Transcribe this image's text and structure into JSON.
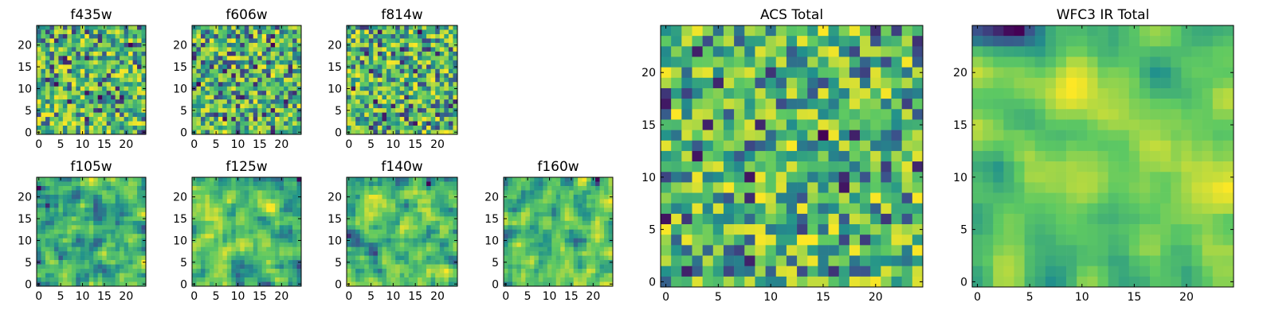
{
  "chart_data": [
    {
      "type": "heatmap",
      "title": "f435w",
      "grid_size": 25,
      "xticks": [
        "0",
        "5",
        "10",
        "15",
        "20"
      ],
      "yticks": [
        "0",
        "5",
        "10",
        "15",
        "20"
      ],
      "colormap": "viridis",
      "smooth": 0,
      "seed": 11
    },
    {
      "type": "heatmap",
      "title": "f606w",
      "grid_size": 25,
      "xticks": [
        "0",
        "5",
        "10",
        "15",
        "20"
      ],
      "yticks": [
        "0",
        "5",
        "10",
        "15",
        "20"
      ],
      "colormap": "viridis",
      "smooth": 0,
      "seed": 23
    },
    {
      "type": "heatmap",
      "title": "f814w",
      "grid_size": 25,
      "xticks": [
        "0",
        "5",
        "10",
        "15",
        "20"
      ],
      "yticks": [
        "0",
        "5",
        "10",
        "15",
        "20"
      ],
      "colormap": "viridis",
      "smooth": 0,
      "seed": 37
    },
    {
      "type": "heatmap",
      "title": "f105w",
      "grid_size": 25,
      "xticks": [
        "0",
        "5",
        "10",
        "15",
        "20"
      ],
      "yticks": [
        "0",
        "5",
        "10",
        "15",
        "20"
      ],
      "colormap": "viridis",
      "smooth": 1,
      "seed": 41
    },
    {
      "type": "heatmap",
      "title": "f125w",
      "grid_size": 25,
      "xticks": [
        "0",
        "5",
        "10",
        "15",
        "20"
      ],
      "yticks": [
        "0",
        "5",
        "10",
        "15",
        "20"
      ],
      "colormap": "viridis",
      "smooth": 1,
      "seed": 53
    },
    {
      "type": "heatmap",
      "title": "f140w",
      "grid_size": 25,
      "xticks": [
        "0",
        "5",
        "10",
        "15",
        "20"
      ],
      "yticks": [
        "0",
        "5",
        "10",
        "15",
        "20"
      ],
      "colormap": "viridis",
      "smooth": 1,
      "seed": 67
    },
    {
      "type": "heatmap",
      "title": "f160w",
      "grid_size": 25,
      "xticks": [
        "0",
        "5",
        "10",
        "15",
        "20"
      ],
      "yticks": [
        "0",
        "5",
        "10",
        "15",
        "20"
      ],
      "colormap": "viridis",
      "smooth": 1,
      "seed": 79
    },
    {
      "type": "heatmap",
      "title": "ACS Total",
      "grid_size": 25,
      "xticks": [
        "0",
        "5",
        "10",
        "15",
        "20"
      ],
      "yticks": [
        "0",
        "5",
        "10",
        "15",
        "20"
      ],
      "colormap": "viridis",
      "smooth": 0,
      "seed": 89
    },
    {
      "type": "heatmap",
      "title": "WFC3 IR Total",
      "grid_size": 25,
      "xticks": [
        "0",
        "5",
        "10",
        "15",
        "20"
      ],
      "yticks": [
        "0",
        "5",
        "10",
        "15",
        "20"
      ],
      "colormap": "viridis",
      "smooth": 2,
      "seed": 97
    }
  ],
  "colormap_stops": [
    "#440154",
    "#3b528b",
    "#21918c",
    "#5ec962",
    "#fde725"
  ]
}
